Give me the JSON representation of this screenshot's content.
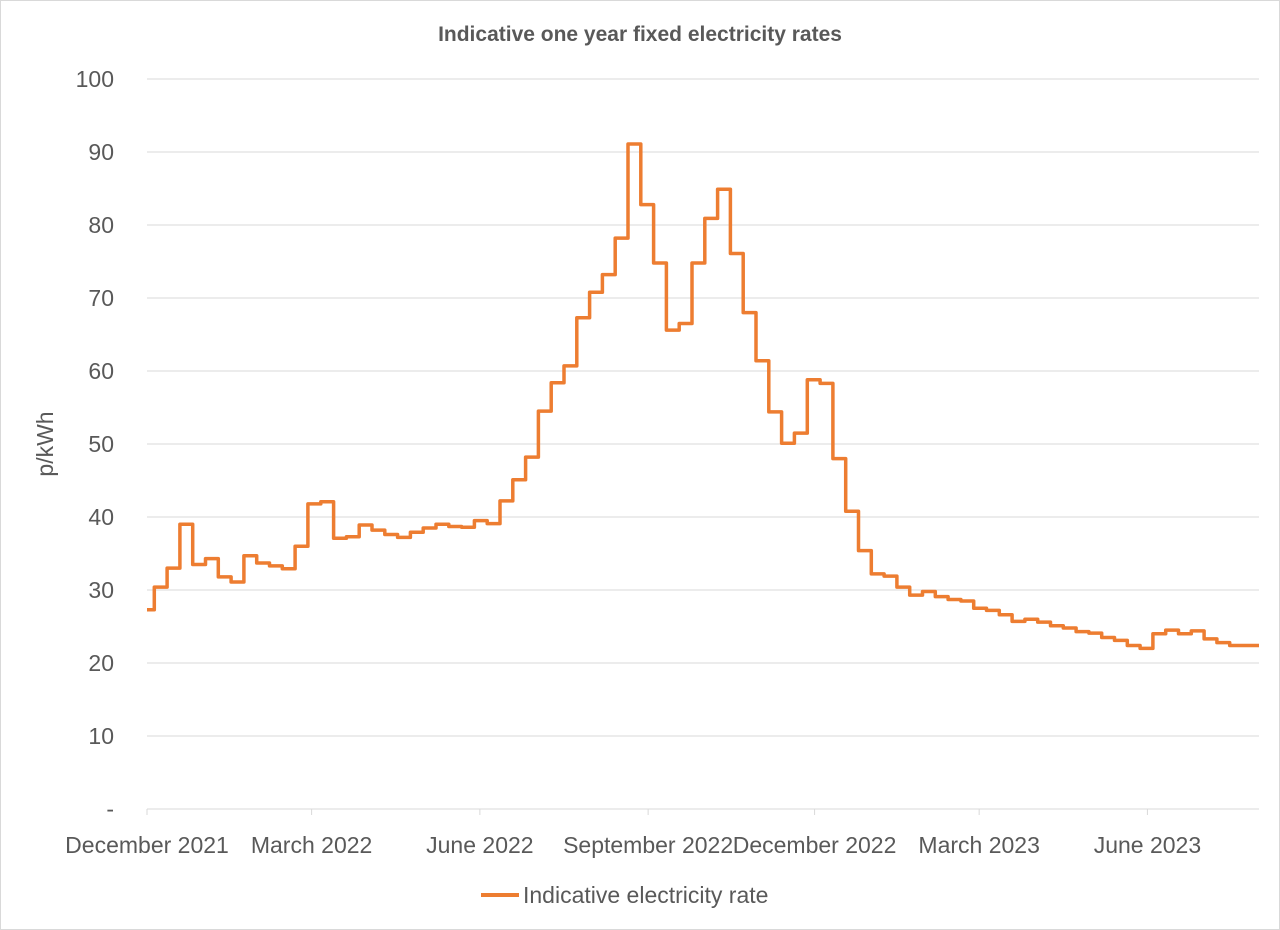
{
  "chart_data": {
    "type": "line",
    "title": "Indicative one year fixed electricity rates",
    "xlabel": "",
    "ylabel": "p/kWh",
    "ylim": [
      0,
      100
    ],
    "yticks": [
      0,
      10,
      20,
      30,
      40,
      50,
      60,
      70,
      80,
      90,
      100
    ],
    "ytick_labels": [
      "-",
      "10",
      "20",
      "30",
      "40",
      "50",
      "60",
      "70",
      "80",
      "90",
      "100"
    ],
    "xticks": [
      {
        "date": "2021-12-01",
        "label": "December 2021"
      },
      {
        "date": "2022-03-01",
        "label": "March 2022"
      },
      {
        "date": "2022-06-01",
        "label": "June 2022"
      },
      {
        "date": "2022-09-01",
        "label": "September 2022"
      },
      {
        "date": "2022-12-01",
        "label": "December 2022"
      },
      {
        "date": "2023-03-01",
        "label": "March 2023"
      },
      {
        "date": "2023-06-01",
        "label": "June 2023"
      }
    ],
    "xlim": [
      "2021-12-01",
      "2023-08-01"
    ],
    "grid": true,
    "legend_position": "bottom",
    "colors": {
      "series": "#ED7D31",
      "grid": "#D9D9D9",
      "text": "#595959"
    },
    "series": [
      {
        "name": "Indicative electricity rate",
        "points": [
          [
            "2021-12-01",
            27.3
          ],
          [
            "2021-12-05",
            30.4
          ],
          [
            "2021-12-12",
            33.0
          ],
          [
            "2021-12-19",
            39.0
          ],
          [
            "2021-12-26",
            33.5
          ],
          [
            "2022-01-02",
            34.3
          ],
          [
            "2022-01-09",
            31.8
          ],
          [
            "2022-01-16",
            31.1
          ],
          [
            "2022-01-23",
            34.7
          ],
          [
            "2022-01-30",
            33.7
          ],
          [
            "2022-02-06",
            33.3
          ],
          [
            "2022-02-13",
            32.9
          ],
          [
            "2022-02-20",
            36.0
          ],
          [
            "2022-02-27",
            41.8
          ],
          [
            "2022-03-06",
            42.1
          ],
          [
            "2022-03-13",
            37.1
          ],
          [
            "2022-03-20",
            37.3
          ],
          [
            "2022-03-27",
            38.9
          ],
          [
            "2022-04-03",
            38.2
          ],
          [
            "2022-04-10",
            37.6
          ],
          [
            "2022-04-17",
            37.2
          ],
          [
            "2022-04-24",
            37.9
          ],
          [
            "2022-05-01",
            38.5
          ],
          [
            "2022-05-08",
            39.0
          ],
          [
            "2022-05-15",
            38.7
          ],
          [
            "2022-05-22",
            38.6
          ],
          [
            "2022-05-29",
            39.5
          ],
          [
            "2022-06-05",
            39.1
          ],
          [
            "2022-06-12",
            42.2
          ],
          [
            "2022-06-19",
            45.1
          ],
          [
            "2022-06-26",
            48.2
          ],
          [
            "2022-07-03",
            54.5
          ],
          [
            "2022-07-10",
            58.4
          ],
          [
            "2022-07-17",
            60.7
          ],
          [
            "2022-07-24",
            67.3
          ],
          [
            "2022-07-31",
            70.8
          ],
          [
            "2022-08-07",
            73.2
          ],
          [
            "2022-08-14",
            78.2
          ],
          [
            "2022-08-21",
            91.1
          ],
          [
            "2022-08-28",
            82.8
          ],
          [
            "2022-09-04",
            74.8
          ],
          [
            "2022-09-11",
            65.6
          ],
          [
            "2022-09-18",
            66.5
          ],
          [
            "2022-09-25",
            74.8
          ],
          [
            "2022-10-02",
            80.9
          ],
          [
            "2022-10-09",
            84.9
          ],
          [
            "2022-10-16",
            76.1
          ],
          [
            "2022-10-23",
            68.0
          ],
          [
            "2022-10-30",
            61.4
          ],
          [
            "2022-11-06",
            54.4
          ],
          [
            "2022-11-13",
            50.1
          ],
          [
            "2022-11-20",
            51.5
          ],
          [
            "2022-11-27",
            58.8
          ],
          [
            "2022-12-04",
            58.3
          ],
          [
            "2022-12-11",
            48.0
          ],
          [
            "2022-12-18",
            40.8
          ],
          [
            "2022-12-25",
            35.4
          ],
          [
            "2023-01-01",
            32.2
          ],
          [
            "2023-01-08",
            31.9
          ],
          [
            "2023-01-15",
            30.4
          ],
          [
            "2023-01-22",
            29.3
          ],
          [
            "2023-01-29",
            29.8
          ],
          [
            "2023-02-05",
            29.1
          ],
          [
            "2023-02-12",
            28.7
          ],
          [
            "2023-02-19",
            28.5
          ],
          [
            "2023-02-26",
            27.5
          ],
          [
            "2023-03-05",
            27.2
          ],
          [
            "2023-03-12",
            26.6
          ],
          [
            "2023-03-19",
            25.7
          ],
          [
            "2023-03-26",
            26.0
          ],
          [
            "2023-04-02",
            25.6
          ],
          [
            "2023-04-09",
            25.1
          ],
          [
            "2023-04-16",
            24.8
          ],
          [
            "2023-04-23",
            24.3
          ],
          [
            "2023-04-30",
            24.1
          ],
          [
            "2023-05-07",
            23.5
          ],
          [
            "2023-05-14",
            23.1
          ],
          [
            "2023-05-21",
            22.4
          ],
          [
            "2023-05-28",
            22.0
          ],
          [
            "2023-06-04",
            24.0
          ],
          [
            "2023-06-11",
            24.5
          ],
          [
            "2023-06-18",
            24.0
          ],
          [
            "2023-06-25",
            24.4
          ],
          [
            "2023-07-02",
            23.3
          ],
          [
            "2023-07-09",
            22.8
          ],
          [
            "2023-07-16",
            22.4
          ],
          [
            "2023-08-01",
            22.4
          ]
        ]
      }
    ]
  }
}
